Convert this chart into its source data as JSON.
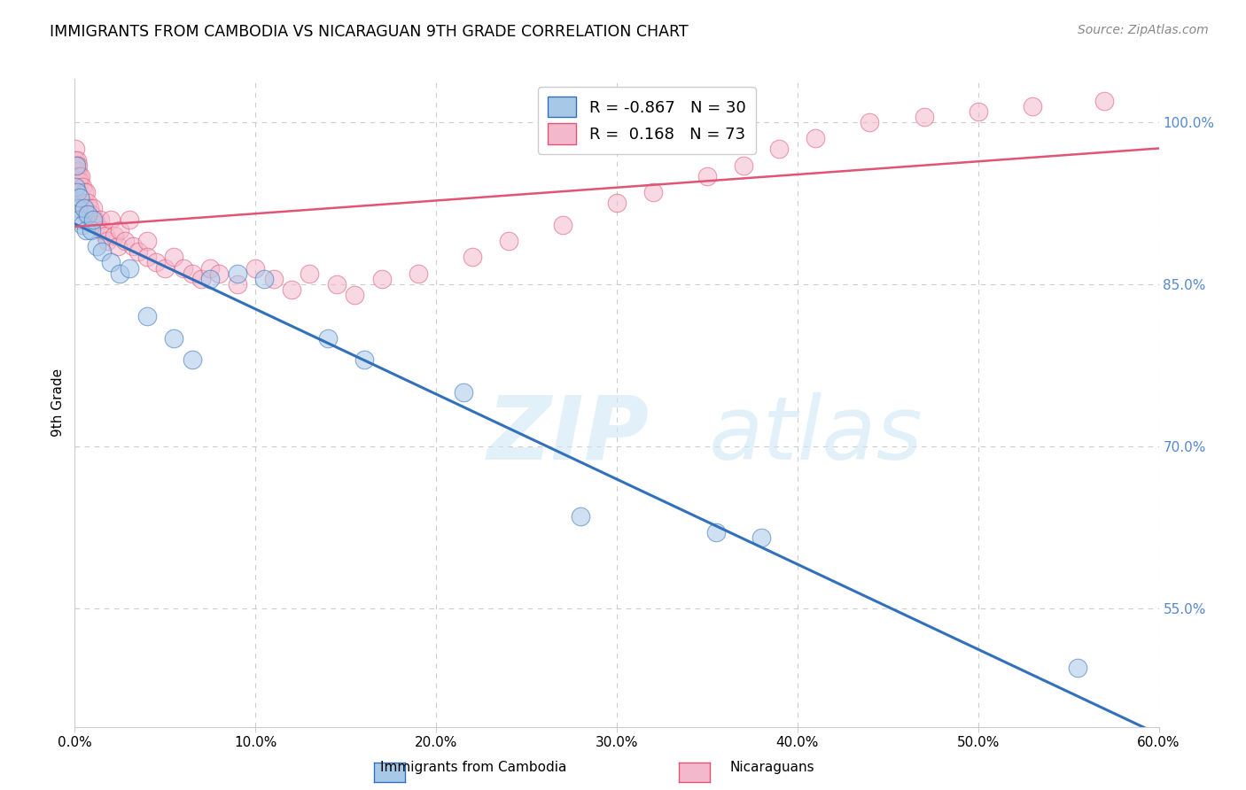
{
  "title": "IMMIGRANTS FROM CAMBODIA VS NICARAGUAN 9TH GRADE CORRELATION CHART",
  "source": "Source: ZipAtlas.com",
  "ylabel": "9th Grade",
  "x_tick_values": [
    0.0,
    10.0,
    20.0,
    30.0,
    40.0,
    50.0,
    60.0
  ],
  "y_tick_values": [
    55.0,
    70.0,
    85.0,
    100.0
  ],
  "xlim": [
    0.0,
    60.0
  ],
  "ylim": [
    44.0,
    104.0
  ],
  "legend1_label": "Immigrants from Cambodia",
  "legend2_label": "Nicaraguans",
  "color_blue": "#a8c8e8",
  "color_pink": "#f4b8cc",
  "line_color_blue": "#3370bb",
  "line_color_pink": "#e05575",
  "R_blue": -0.867,
  "N_blue": 30,
  "R_pink": 0.168,
  "N_pink": 73,
  "blue_x": [
    0.05,
    0.1,
    0.15,
    0.2,
    0.25,
    0.3,
    0.4,
    0.5,
    0.6,
    0.7,
    0.9,
    1.0,
    1.2,
    1.5,
    2.0,
    2.5,
    3.0,
    4.0,
    5.5,
    6.5,
    7.5,
    9.0,
    10.5,
    14.0,
    16.0,
    21.5,
    28.0,
    35.5,
    38.0,
    55.5
  ],
  "blue_y": [
    94.0,
    96.0,
    93.5,
    92.0,
    91.0,
    93.0,
    90.5,
    92.0,
    90.0,
    91.5,
    90.0,
    91.0,
    88.5,
    88.0,
    87.0,
    86.0,
    86.5,
    82.0,
    80.0,
    78.0,
    85.5,
    86.0,
    85.5,
    80.0,
    78.0,
    75.0,
    63.5,
    62.0,
    61.5,
    49.5
  ],
  "pink_x": [
    0.05,
    0.05,
    0.05,
    0.05,
    0.1,
    0.1,
    0.1,
    0.15,
    0.15,
    0.2,
    0.2,
    0.25,
    0.25,
    0.3,
    0.3,
    0.35,
    0.4,
    0.4,
    0.5,
    0.5,
    0.6,
    0.6,
    0.7,
    0.8,
    0.9,
    1.0,
    1.1,
    1.2,
    1.4,
    1.5,
    1.7,
    1.8,
    2.0,
    2.2,
    2.4,
    2.5,
    2.8,
    3.0,
    3.2,
    3.5,
    4.0,
    4.0,
    4.5,
    5.0,
    5.5,
    6.0,
    6.5,
    7.0,
    7.5,
    8.0,
    9.0,
    10.0,
    11.0,
    12.0,
    13.0,
    14.5,
    15.5,
    17.0,
    19.0,
    22.0,
    24.0,
    27.0,
    30.0,
    32.0,
    35.0,
    37.0,
    39.0,
    41.0,
    44.0,
    47.0,
    50.0,
    53.0,
    57.0
  ],
  "pink_y": [
    97.5,
    96.5,
    95.5,
    94.5,
    96.0,
    95.0,
    94.0,
    96.5,
    95.5,
    96.0,
    94.5,
    95.0,
    93.5,
    94.5,
    93.0,
    95.0,
    94.0,
    92.5,
    93.5,
    92.0,
    93.5,
    91.5,
    92.5,
    92.0,
    91.5,
    92.0,
    91.0,
    90.5,
    91.0,
    90.0,
    89.5,
    89.0,
    91.0,
    89.5,
    88.5,
    90.0,
    89.0,
    91.0,
    88.5,
    88.0,
    89.0,
    87.5,
    87.0,
    86.5,
    87.5,
    86.5,
    86.0,
    85.5,
    86.5,
    86.0,
    85.0,
    86.5,
    85.5,
    84.5,
    86.0,
    85.0,
    84.0,
    85.5,
    86.0,
    87.5,
    89.0,
    90.5,
    92.5,
    93.5,
    95.0,
    96.0,
    97.5,
    98.5,
    100.0,
    100.5,
    101.0,
    101.5,
    102.0
  ]
}
